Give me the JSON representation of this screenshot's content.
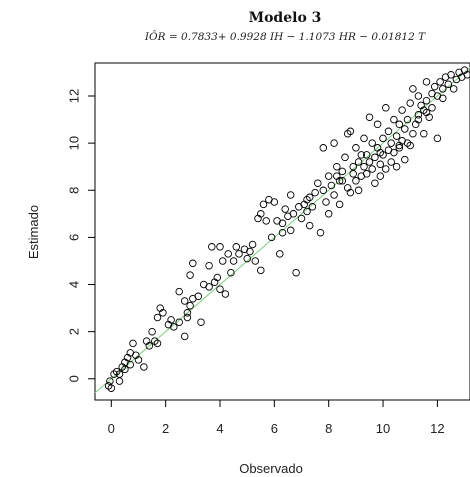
{
  "chart_data": {
    "type": "scatter",
    "title": "Modelo 3",
    "subtitle": "IÔR = 0.7833+ 0.9928 IH − 1.1073 HR − 0.01812 T",
    "xlabel": "Observado",
    "ylabel": "Estimado",
    "xlim": [
      -0.6,
      13.2
    ],
    "ylim": [
      -0.9,
      13.4
    ],
    "x_ticks": [
      0,
      2,
      4,
      6,
      8,
      10,
      12
    ],
    "y_ticks": [
      0,
      2,
      4,
      6,
      8,
      10,
      12
    ],
    "point_style": "open-circle",
    "line": {
      "type": "identity",
      "color": "#7fcf7f",
      "from": [
        -0.6,
        -0.6
      ],
      "to": [
        13.2,
        13.2
      ]
    },
    "series": [
      {
        "points": [
          [
            -0.1,
            -0.3
          ],
          [
            0.0,
            -0.4
          ],
          [
            -0.05,
            -0.1
          ],
          [
            0.1,
            0.2
          ],
          [
            0.2,
            0.3
          ],
          [
            0.3,
            0.2
          ],
          [
            0.4,
            0.5
          ],
          [
            0.5,
            0.4
          ],
          [
            0.3,
            -0.1
          ],
          [
            0.6,
            0.9
          ],
          [
            0.7,
            1.1
          ],
          [
            0.8,
            1.5
          ],
          [
            0.7,
            0.6
          ],
          [
            1.0,
            0.8
          ],
          [
            1.2,
            0.5
          ],
          [
            1.4,
            1.4
          ],
          [
            1.6,
            1.6
          ],
          [
            1.5,
            2.0
          ],
          [
            1.7,
            2.6
          ],
          [
            1.8,
            3.0
          ],
          [
            1.9,
            2.8
          ],
          [
            1.7,
            1.5
          ],
          [
            2.1,
            2.3
          ],
          [
            2.3,
            2.2
          ],
          [
            2.5,
            2.4
          ],
          [
            2.5,
            3.7
          ],
          [
            2.7,
            3.3
          ],
          [
            2.8,
            2.8
          ],
          [
            2.7,
            1.8
          ],
          [
            2.8,
            2.6
          ],
          [
            2.9,
            3.1
          ],
          [
            3.0,
            3.4
          ],
          [
            2.9,
            4.4
          ],
          [
            3.0,
            4.9
          ],
          [
            3.3,
            2.4
          ],
          [
            3.4,
            4.0
          ],
          [
            3.6,
            3.9
          ],
          [
            3.6,
            4.8
          ],
          [
            3.7,
            5.6
          ],
          [
            3.9,
            4.3
          ],
          [
            4.0,
            5.6
          ],
          [
            4.0,
            3.8
          ],
          [
            4.1,
            5.0
          ],
          [
            4.2,
            3.6
          ],
          [
            4.3,
            5.3
          ],
          [
            4.4,
            4.5
          ],
          [
            4.5,
            5.0
          ],
          [
            4.6,
            5.6
          ],
          [
            4.7,
            5.3
          ],
          [
            4.9,
            5.5
          ],
          [
            5.0,
            5.1
          ],
          [
            5.2,
            5.7
          ],
          [
            5.3,
            5.0
          ],
          [
            5.4,
            6.8
          ],
          [
            5.5,
            7.0
          ],
          [
            5.5,
            4.6
          ],
          [
            5.6,
            7.4
          ],
          [
            5.7,
            6.7
          ],
          [
            5.8,
            7.6
          ],
          [
            5.9,
            6.0
          ],
          [
            6.0,
            7.5
          ],
          [
            6.1,
            6.7
          ],
          [
            6.2,
            5.3
          ],
          [
            6.3,
            6.6
          ],
          [
            6.4,
            7.2
          ],
          [
            6.5,
            6.9
          ],
          [
            6.6,
            7.8
          ],
          [
            6.6,
            6.3
          ],
          [
            6.7,
            7.0
          ],
          [
            6.8,
            4.5
          ],
          [
            6.9,
            7.3
          ],
          [
            7.0,
            6.8
          ],
          [
            7.1,
            7.4
          ],
          [
            7.2,
            7.1
          ],
          [
            7.3,
            7.7
          ],
          [
            7.3,
            6.5
          ],
          [
            7.4,
            7.3
          ],
          [
            7.5,
            7.9
          ],
          [
            7.6,
            8.3
          ],
          [
            7.7,
            6.2
          ],
          [
            7.8,
            8.0
          ],
          [
            7.8,
            9.8
          ],
          [
            7.9,
            7.5
          ],
          [
            8.0,
            8.6
          ],
          [
            8.0,
            7.0
          ],
          [
            8.1,
            8.2
          ],
          [
            8.2,
            7.8
          ],
          [
            8.2,
            10.0
          ],
          [
            8.3,
            8.6
          ],
          [
            8.3,
            9.0
          ],
          [
            8.4,
            7.4
          ],
          [
            8.5,
            8.4
          ],
          [
            8.5,
            8.8
          ],
          [
            8.6,
            9.4
          ],
          [
            8.7,
            8.1
          ],
          [
            8.7,
            10.4
          ],
          [
            8.8,
            10.5
          ],
          [
            8.8,
            7.9
          ],
          [
            8.9,
            8.7
          ],
          [
            8.9,
            9.0
          ],
          [
            9.0,
            8.4
          ],
          [
            9.0,
            9.8
          ],
          [
            9.1,
            9.2
          ],
          [
            9.1,
            8.0
          ],
          [
            9.2,
            9.5
          ],
          [
            9.2,
            8.6
          ],
          [
            9.3,
            10.2
          ],
          [
            9.3,
            9.0
          ],
          [
            9.4,
            8.7
          ],
          [
            9.4,
            9.5
          ],
          [
            9.5,
            9.2
          ],
          [
            9.5,
            11.1
          ],
          [
            9.6,
            8.9
          ],
          [
            9.6,
            10.0
          ],
          [
            9.7,
            9.4
          ],
          [
            9.7,
            8.3
          ],
          [
            9.8,
            9.8
          ],
          [
            9.8,
            10.8
          ],
          [
            9.9,
            9.1
          ],
          [
            9.9,
            8.6
          ],
          [
            10.0,
            10.2
          ],
          [
            10.0,
            9.5
          ],
          [
            10.1,
            11.5
          ],
          [
            10.1,
            8.9
          ],
          [
            10.2,
            9.7
          ],
          [
            10.2,
            10.5
          ],
          [
            10.3,
            9.2
          ],
          [
            10.3,
            10.0
          ],
          [
            10.4,
            9.6
          ],
          [
            10.4,
            11.0
          ],
          [
            10.5,
            10.3
          ],
          [
            10.5,
            9.0
          ],
          [
            10.6,
            10.8
          ],
          [
            10.6,
            9.8
          ],
          [
            10.7,
            10.1
          ],
          [
            10.7,
            11.4
          ],
          [
            10.8,
            9.3
          ],
          [
            10.8,
            10.6
          ],
          [
            10.9,
            11.0
          ],
          [
            10.9,
            10.0
          ],
          [
            11.0,
            11.7
          ],
          [
            11.0,
            9.9
          ],
          [
            11.1,
            10.4
          ],
          [
            11.1,
            12.3
          ],
          [
            11.2,
            10.8
          ],
          [
            11.3,
            11.2
          ],
          [
            11.3,
            12.0
          ],
          [
            11.4,
            11.6
          ],
          [
            11.5,
            11.4
          ],
          [
            11.5,
            10.4
          ],
          [
            11.6,
            11.8
          ],
          [
            11.6,
            12.6
          ],
          [
            11.7,
            11.1
          ],
          [
            11.8,
            12.1
          ],
          [
            11.8,
            11.5
          ],
          [
            11.9,
            12.4
          ],
          [
            12.0,
            12.0
          ],
          [
            12.0,
            10.2
          ],
          [
            12.1,
            12.6
          ],
          [
            12.2,
            11.9
          ],
          [
            12.2,
            12.3
          ],
          [
            12.3,
            12.8
          ],
          [
            12.4,
            12.5
          ],
          [
            12.5,
            12.9
          ],
          [
            12.6,
            12.3
          ],
          [
            12.7,
            12.7
          ],
          [
            12.8,
            13.0
          ],
          [
            12.9,
            12.8
          ],
          [
            13.0,
            13.1
          ],
          [
            13.1,
            12.9
          ],
          [
            9.9,
            9.6
          ],
          [
            10.6,
            9.9
          ],
          [
            11.3,
            11.0
          ],
          [
            11.6,
            11.3
          ],
          [
            8.4,
            8.4
          ],
          [
            7.2,
            7.6
          ],
          [
            6.3,
            6.2
          ],
          [
            5.1,
            5.4
          ],
          [
            3.8,
            4.1
          ],
          [
            3.2,
            3.5
          ],
          [
            2.2,
            2.5
          ],
          [
            1.3,
            1.6
          ],
          [
            0.9,
            1.0
          ],
          [
            0.5,
            0.7
          ]
        ]
      }
    ]
  }
}
